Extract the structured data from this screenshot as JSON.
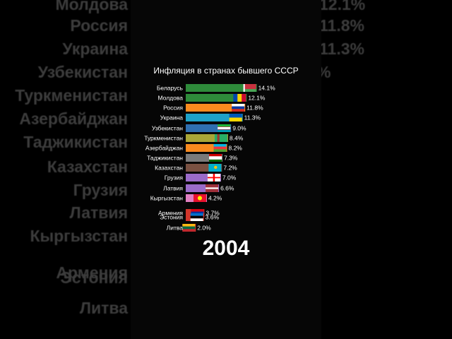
{
  "background_labels_left": [
    {
      "text": "Молдова"
    },
    {
      "text": "Россия"
    },
    {
      "text": "Украина"
    },
    {
      "text": "Узбекистан"
    },
    {
      "text": "Туркменистан"
    },
    {
      "text": "Азербайджан"
    },
    {
      "text": "Таджикистан"
    },
    {
      "text": "Казахстан"
    },
    {
      "text": "Грузия"
    },
    {
      "text": "Латвия"
    },
    {
      "text": "Кыргызстан"
    },
    {
      "text": "Армения"
    },
    {
      "text": "Эстония"
    },
    {
      "text": "Литва"
    }
  ],
  "background_labels_right": [
    {
      "text": "12.1%"
    },
    {
      "text": "11.8%"
    },
    {
      "text": "11.3%"
    },
    {
      "text": "%"
    }
  ],
  "chart_data": {
    "type": "bar",
    "orientation": "horizontal",
    "title": "Инфляция в странах бывшего СССР",
    "period_label": "2004",
    "value_suffix": "%",
    "xlim": [
      0,
      15
    ],
    "grid": false,
    "legend": "none",
    "bars": [
      {
        "category": "Беларусь",
        "value": 14.1,
        "color": "#2e8b3a",
        "flag": "by"
      },
      {
        "category": "Молдова",
        "value": 12.1,
        "color": "#2e8b3a",
        "flag": "md"
      },
      {
        "category": "Россия",
        "value": 11.8,
        "color": "#f98a1e",
        "flag": "ru"
      },
      {
        "category": "Украина",
        "value": 11.3,
        "color": "#1ea2c8",
        "flag": "ua"
      },
      {
        "category": "Узбекистан",
        "value": 9.0,
        "color": "#2f6fb0",
        "flag": "uz"
      },
      {
        "category": "Туркменистан",
        "value": 8.4,
        "color": "#a9a637",
        "flag": "tm"
      },
      {
        "category": "Азербайджан",
        "value": 8.2,
        "color": "#f98a1e",
        "flag": "az"
      },
      {
        "category": "Таджикистан",
        "value": 7.3,
        "color": "#7a7a7a",
        "flag": "tj"
      },
      {
        "category": "Казахстан",
        "value": 7.2,
        "color": "#7a5142",
        "flag": "kz"
      },
      {
        "category": "Грузия",
        "value": 7.0,
        "color": "#9b6bc9",
        "flag": "ge"
      },
      {
        "category": "Латвия",
        "value": 6.6,
        "color": "#9b6bc9",
        "flag": "lv"
      },
      {
        "category": "Кыргызстан",
        "value": 4.2,
        "color": "#e17fc2",
        "flag": "kg"
      },
      {
        "category": "Армения",
        "value": 3.7,
        "color": "#d0352b",
        "flag": "am"
      },
      {
        "category": "Эстония",
        "value": 3.6,
        "color": "#d0352b",
        "flag": "ee"
      },
      {
        "category": "Литва",
        "value": 2.0,
        "color": "#d0352b",
        "flag": "lt"
      }
    ]
  }
}
